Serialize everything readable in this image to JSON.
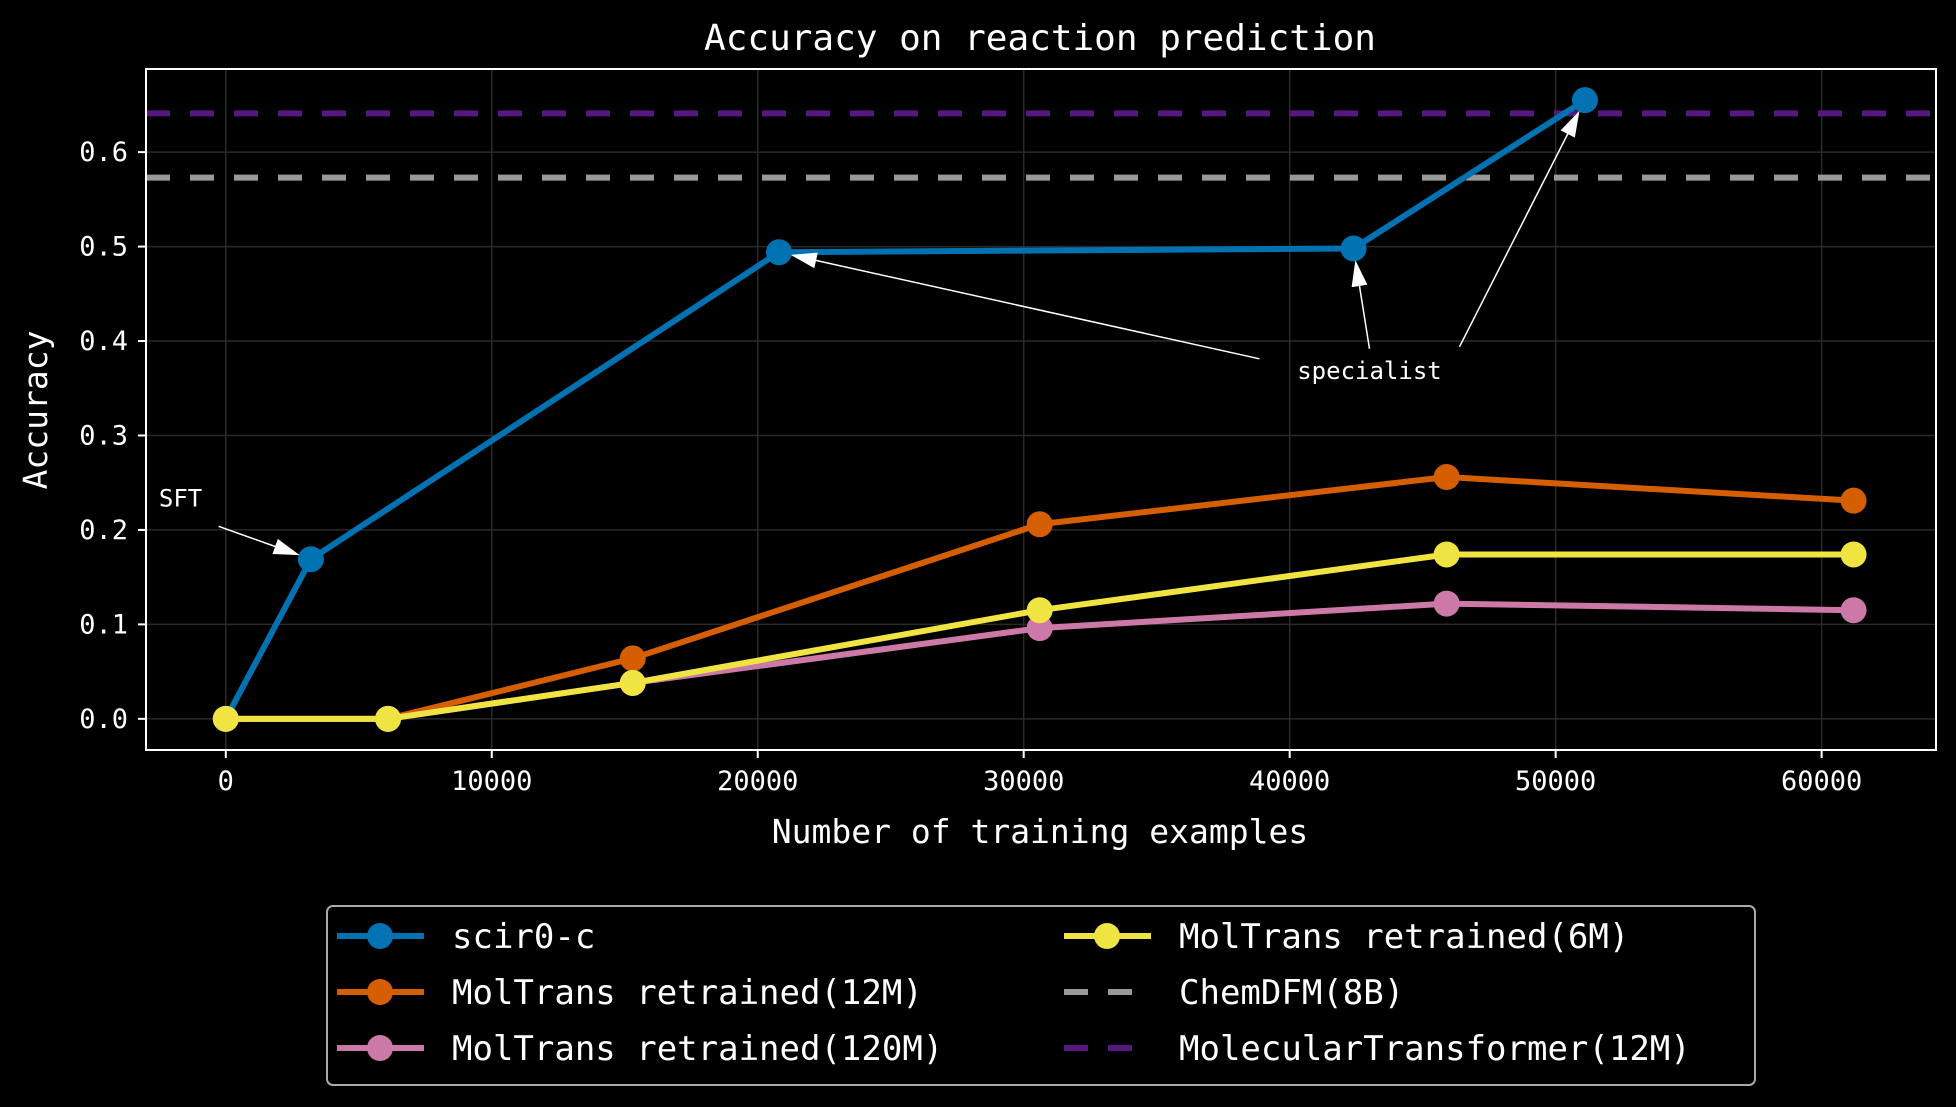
{
  "chart_data": {
    "type": "line",
    "title": "Accuracy on reaction prediction",
    "xlabel": "Number of training examples",
    "ylabel": "Accuracy",
    "xlim": [
      -3000,
      64300
    ],
    "ylim": [
      -0.033,
      0.688
    ],
    "xticks": [
      0,
      10000,
      20000,
      30000,
      40000,
      50000,
      60000
    ],
    "xtick_labels": [
      "0",
      "10000",
      "20000",
      "30000",
      "40000",
      "50000",
      "60000"
    ],
    "yticks": [
      0.0,
      0.1,
      0.2,
      0.3,
      0.4,
      0.5,
      0.6
    ],
    "ytick_labels": [
      "0.0",
      "0.1",
      "0.2",
      "0.3",
      "0.4",
      "0.5",
      "0.6"
    ],
    "grid": true,
    "legend_placement": "below",
    "series": [
      {
        "name": "scir0-c",
        "color": "#0072B2",
        "style": "solid-marker",
        "x": [
          0,
          3200,
          20800,
          42400,
          51100
        ],
        "y": [
          0.0,
          0.169,
          0.494,
          0.498,
          0.655
        ]
      },
      {
        "name": "MolTrans retrained(12M)",
        "color": "#D55E00",
        "style": "solid-marker",
        "x": [
          0,
          6100,
          15300,
          30600,
          45900,
          61200
        ],
        "y": [
          0.0,
          0.0,
          0.064,
          0.206,
          0.256,
          0.231
        ]
      },
      {
        "name": "MolTrans retrained(120M)",
        "color": "#CC79A7",
        "style": "solid-marker",
        "x": [
          0,
          6100,
          15300,
          30600,
          45900,
          61200
        ],
        "y": [
          0.0,
          0.0,
          0.038,
          0.096,
          0.122,
          0.115
        ]
      },
      {
        "name": "MolTrans retrained(6M)",
        "color": "#F0E442",
        "style": "solid-marker",
        "x": [
          0,
          6100,
          15300,
          30600,
          45900,
          61200
        ],
        "y": [
          0.0,
          0.0,
          0.038,
          0.115,
          0.174,
          0.174
        ]
      },
      {
        "name": "ChemDFM(8B)",
        "color": "#999999",
        "style": "hline-dashed",
        "y": 0.573
      },
      {
        "name": "MolecularTransformer(12M)",
        "color": "#56177F",
        "style": "hline-dashed",
        "y": 0.641
      }
    ],
    "legend_order": [
      0,
      1,
      2,
      3,
      4,
      5
    ],
    "annotations": [
      {
        "text": "SFT",
        "text_at": [
          -1700,
          0.225
        ],
        "targets": [
          [
            3200,
            0.169
          ]
        ]
      },
      {
        "text": "specialist",
        "text_at": [
          43000,
          0.36
        ],
        "targets": [
          [
            20800,
            0.494
          ],
          [
            42400,
            0.498
          ],
          [
            51100,
            0.655
          ]
        ]
      }
    ]
  }
}
